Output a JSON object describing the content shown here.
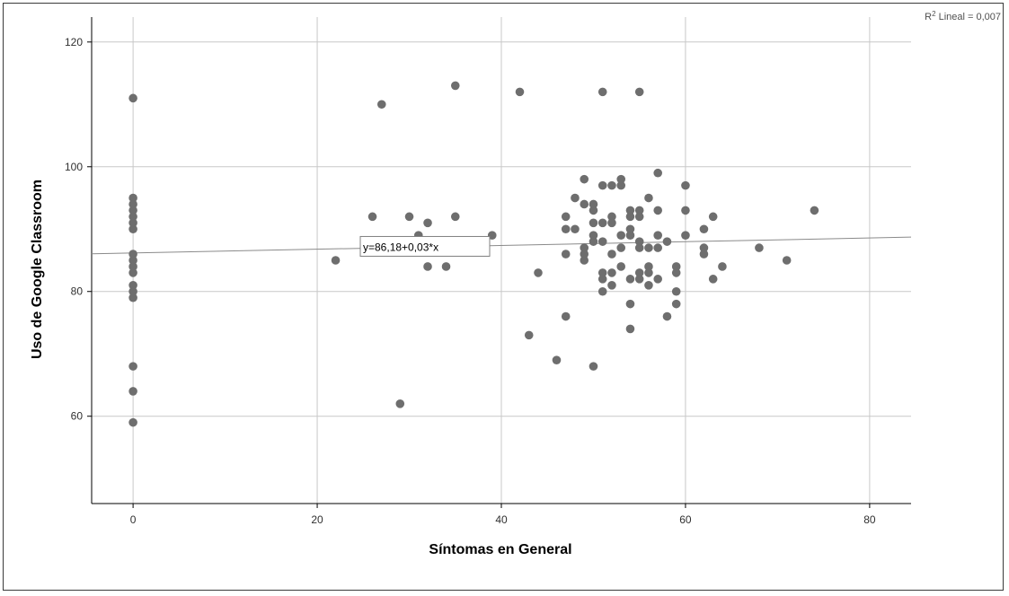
{
  "chart_data": {
    "type": "scatter",
    "title": "",
    "xlabel": "Síntomas en General",
    "ylabel": "Uso de Google Classroom",
    "xlim": [
      -4.5,
      84.5
    ],
    "ylim": [
      46,
      124
    ],
    "x_ticks": [
      "0",
      "20",
      "40",
      "60",
      "80"
    ],
    "x_tick_values": [
      0,
      20,
      40,
      60,
      80
    ],
    "y_ticks": [
      "60",
      "80",
      "100",
      "120"
    ],
    "y_tick_values": [
      60,
      80,
      100,
      120
    ],
    "grid": true,
    "fit_line": {
      "equation_label": "y=86,18+0,03*x",
      "intercept": 86.18,
      "slope": 0.03,
      "r2_label": "Lineal = 0,007",
      "r2_prefix": "R",
      "r2_sup": "2"
    },
    "points": [
      [
        0,
        111
      ],
      [
        0,
        95
      ],
      [
        0,
        94
      ],
      [
        0,
        93
      ],
      [
        0,
        92
      ],
      [
        0,
        91
      ],
      [
        0,
        90
      ],
      [
        0,
        86
      ],
      [
        0,
        85
      ],
      [
        0,
        84
      ],
      [
        0,
        83
      ],
      [
        0,
        81
      ],
      [
        0,
        80
      ],
      [
        0,
        79
      ],
      [
        0,
        68
      ],
      [
        0,
        64
      ],
      [
        0,
        59
      ],
      [
        22,
        85
      ],
      [
        26,
        92
      ],
      [
        27,
        110
      ],
      [
        29,
        62
      ],
      [
        30,
        92
      ],
      [
        31,
        89
      ],
      [
        32,
        91
      ],
      [
        32,
        84
      ],
      [
        34,
        84
      ],
      [
        35,
        113
      ],
      [
        35,
        92
      ],
      [
        39,
        89
      ],
      [
        42,
        112
      ],
      [
        43,
        73
      ],
      [
        44,
        83
      ],
      [
        46,
        69
      ],
      [
        47,
        92
      ],
      [
        47,
        90
      ],
      [
        47,
        86
      ],
      [
        47,
        76
      ],
      [
        48,
        95
      ],
      [
        48,
        90
      ],
      [
        49,
        98
      ],
      [
        49,
        94
      ],
      [
        49,
        87
      ],
      [
        49,
        86
      ],
      [
        49,
        85
      ],
      [
        50,
        94
      ],
      [
        50,
        93
      ],
      [
        50,
        91
      ],
      [
        50,
        89
      ],
      [
        50,
        88
      ],
      [
        50,
        68
      ],
      [
        51,
        112
      ],
      [
        51,
        97
      ],
      [
        51,
        91
      ],
      [
        51,
        88
      ],
      [
        51,
        83
      ],
      [
        51,
        82
      ],
      [
        51,
        80
      ],
      [
        52,
        97
      ],
      [
        52,
        92
      ],
      [
        52,
        91
      ],
      [
        52,
        86
      ],
      [
        52,
        83
      ],
      [
        52,
        81
      ],
      [
        53,
        98
      ],
      [
        53,
        97
      ],
      [
        53,
        89
      ],
      [
        53,
        87
      ],
      [
        53,
        84
      ],
      [
        54,
        93
      ],
      [
        54,
        92
      ],
      [
        54,
        90
      ],
      [
        54,
        89
      ],
      [
        54,
        82
      ],
      [
        54,
        78
      ],
      [
        54,
        74
      ],
      [
        55,
        112
      ],
      [
        55,
        93
      ],
      [
        55,
        92
      ],
      [
        55,
        88
      ],
      [
        55,
        87
      ],
      [
        55,
        83
      ],
      [
        55,
        82
      ],
      [
        56,
        95
      ],
      [
        56,
        87
      ],
      [
        56,
        84
      ],
      [
        56,
        83
      ],
      [
        56,
        81
      ],
      [
        57,
        99
      ],
      [
        57,
        93
      ],
      [
        57,
        89
      ],
      [
        57,
        87
      ],
      [
        57,
        82
      ],
      [
        58,
        88
      ],
      [
        58,
        76
      ],
      [
        59,
        84
      ],
      [
        59,
        83
      ],
      [
        59,
        80
      ],
      [
        59,
        78
      ],
      [
        60,
        97
      ],
      [
        60,
        93
      ],
      [
        60,
        89
      ],
      [
        62,
        90
      ],
      [
        62,
        87
      ],
      [
        62,
        86
      ],
      [
        63,
        92
      ],
      [
        63,
        82
      ],
      [
        64,
        84
      ],
      [
        68,
        87
      ],
      [
        71,
        85
      ],
      [
        74,
        93
      ]
    ],
    "marker_color": "#6e6e6e",
    "grid_color": "#c8c8c8",
    "line_color": "#8a8a8a"
  }
}
